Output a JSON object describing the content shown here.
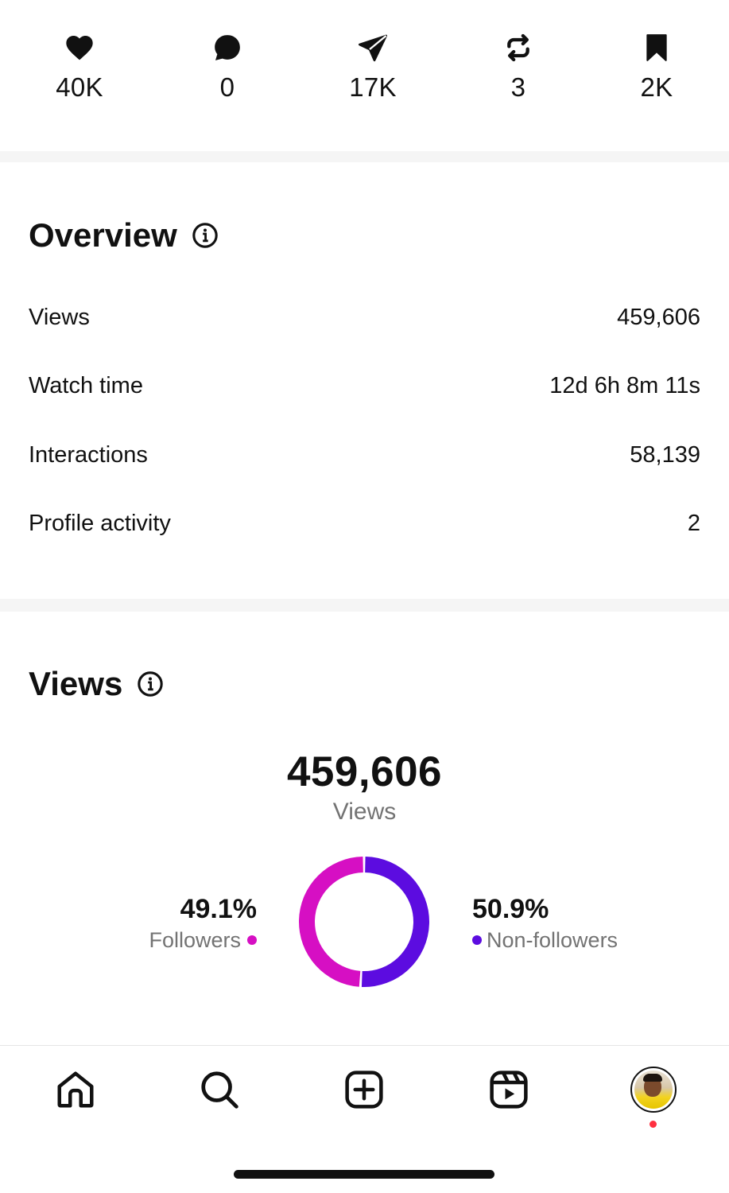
{
  "stats": [
    {
      "icon": "heart-icon",
      "value": "40K"
    },
    {
      "icon": "comment-icon",
      "value": "0"
    },
    {
      "icon": "share-icon",
      "value": "17K"
    },
    {
      "icon": "repost-icon",
      "value": "3"
    },
    {
      "icon": "bookmark-icon",
      "value": "2K"
    }
  ],
  "overview": {
    "title": "Overview",
    "rows": [
      {
        "label": "Views",
        "value": "459,606"
      },
      {
        "label": "Watch time",
        "value": "12d 6h 8m 11s"
      },
      {
        "label": "Interactions",
        "value": "58,139"
      },
      {
        "label": "Profile activity",
        "value": "2"
      }
    ]
  },
  "views": {
    "title": "Views",
    "total": "459,606",
    "total_label": "Views",
    "followers": {
      "percent": "49.1%",
      "label": "Followers",
      "color": "#d60fc3"
    },
    "non_followers": {
      "percent": "50.9%",
      "label": "Non-followers",
      "color": "#5c0ce0"
    }
  },
  "chart_data": {
    "type": "pie",
    "categories": [
      "Followers",
      "Non-followers"
    ],
    "values": [
      49.1,
      50.9
    ],
    "colors": [
      "#d60fc3",
      "#5c0ce0"
    ],
    "center_value": "459,606",
    "center_label": "Views"
  },
  "nav": {
    "items": [
      "home-icon",
      "search-icon",
      "create-icon",
      "reels-icon",
      "profile-avatar"
    ],
    "profile_notification_color": "#ff3040"
  }
}
